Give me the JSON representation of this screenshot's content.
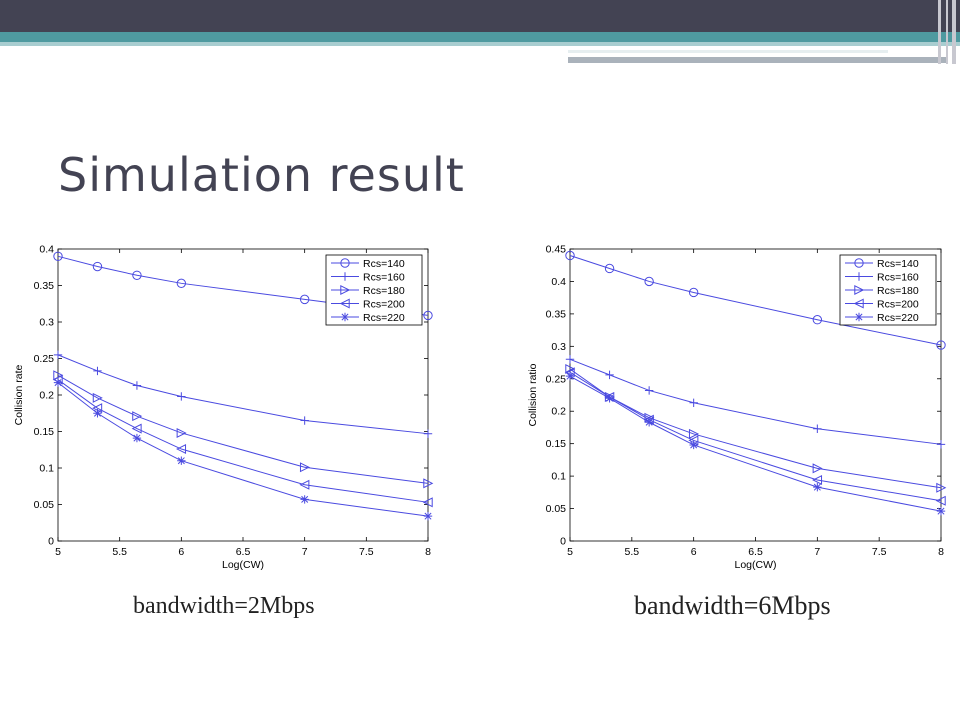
{
  "slide": {
    "title": "Simulation result",
    "captions": [
      "bandwidth=2Mbps",
      "bandwidth=6Mbps"
    ]
  },
  "colors": {
    "header_dark": "#434353",
    "header_teal": "#4f9aa0",
    "series": "#4a4ae0"
  },
  "chart_data": [
    {
      "type": "line",
      "xlabel": "Log(CW)",
      "ylabel": "Collision rate",
      "xlim": [
        5,
        8
      ],
      "ylim": [
        0,
        0.4
      ],
      "xticks": [
        "5",
        "5.5",
        "6",
        "6.5",
        "7",
        "7.5",
        "8"
      ],
      "yticks": [
        "0",
        "0.05",
        "0.1",
        "0.15",
        "0.2",
        "0.25",
        "0.3",
        "0.35",
        "0.4"
      ],
      "legend_position": "top-right",
      "grid": false,
      "x": [
        5,
        5.32,
        5.64,
        6,
        7,
        8
      ],
      "series": [
        {
          "name": "Rcs=140",
          "marker": "circle",
          "values": [
            0.39,
            0.376,
            0.364,
            0.353,
            0.331,
            0.309
          ]
        },
        {
          "name": "Rcs=160",
          "marker": "plus",
          "values": [
            0.255,
            0.233,
            0.213,
            0.198,
            0.165,
            0.147
          ]
        },
        {
          "name": "Rcs=180",
          "marker": "triangle-right",
          "values": [
            0.227,
            0.196,
            0.171,
            0.148,
            0.101,
            0.079
          ]
        },
        {
          "name": "Rcs=200",
          "marker": "triangle-left",
          "values": [
            0.221,
            0.182,
            0.154,
            0.126,
            0.077,
            0.053
          ]
        },
        {
          "name": "Rcs=220",
          "marker": "star",
          "values": [
            0.217,
            0.175,
            0.141,
            0.11,
            0.057,
            0.034
          ]
        }
      ]
    },
    {
      "type": "line",
      "xlabel": "Log(CW)",
      "ylabel": "Collision ratio",
      "xlim": [
        5,
        8
      ],
      "ylim": [
        0,
        0.45
      ],
      "xticks": [
        "5",
        "5.5",
        "6",
        "6.5",
        "7",
        "7.5",
        "8"
      ],
      "yticks": [
        "0",
        "0.05",
        "0.1",
        "0.15",
        "0.2",
        "0.25",
        "0.3",
        "0.35",
        "0.4",
        "0.45"
      ],
      "legend_position": "top-right",
      "grid": false,
      "x": [
        5,
        5.32,
        5.64,
        6,
        7,
        8
      ],
      "series": [
        {
          "name": "Rcs=140",
          "marker": "circle",
          "values": [
            0.44,
            0.42,
            0.4,
            0.383,
            0.341,
            0.302
          ]
        },
        {
          "name": "Rcs=160",
          "marker": "plus",
          "values": [
            0.28,
            0.256,
            0.232,
            0.213,
            0.173,
            0.149
          ]
        },
        {
          "name": "Rcs=180",
          "marker": "triangle-right",
          "values": [
            0.265,
            0.222,
            0.19,
            0.165,
            0.112,
            0.082
          ]
        },
        {
          "name": "Rcs=200",
          "marker": "triangle-left",
          "values": [
            0.26,
            0.222,
            0.187,
            0.155,
            0.094,
            0.062
          ]
        },
        {
          "name": "Rcs=220",
          "marker": "star",
          "values": [
            0.254,
            0.22,
            0.183,
            0.148,
            0.083,
            0.046
          ]
        }
      ]
    }
  ]
}
